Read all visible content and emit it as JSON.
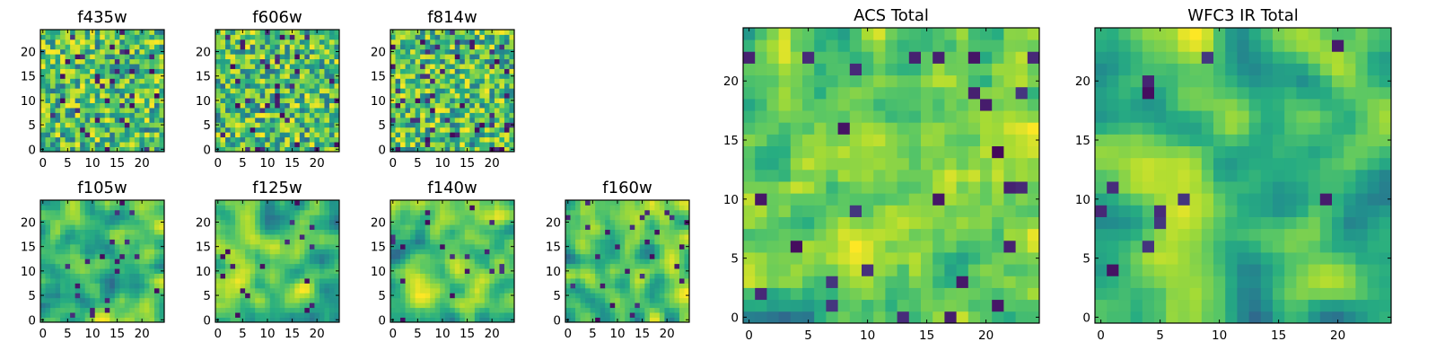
{
  "colormap": "viridis",
  "colors": {
    "frame": "#000000",
    "background": "#ffffff",
    "viridis_low": "#440154",
    "viridis_mid": "#21918c",
    "viridis_high": "#fde725"
  },
  "chart_data": [
    {
      "type": "heatmap",
      "title": "f435w",
      "grid_size": 25,
      "xticks": [
        0,
        5,
        10,
        15,
        20
      ],
      "yticks": [
        0,
        5,
        10,
        15,
        20
      ],
      "xlim": [
        -0.5,
        24.5
      ],
      "ylim": [
        -0.5,
        24.5
      ],
      "pattern": "noisy",
      "seed": 11,
      "smooth": 0,
      "dark_density": 0.05
    },
    {
      "type": "heatmap",
      "title": "f606w",
      "grid_size": 25,
      "xticks": [
        0,
        5,
        10,
        15,
        20
      ],
      "yticks": [
        0,
        5,
        10,
        15,
        20
      ],
      "xlim": [
        -0.5,
        24.5
      ],
      "ylim": [
        -0.5,
        24.5
      ],
      "pattern": "noisy",
      "seed": 23,
      "smooth": 0,
      "dark_density": 0.05
    },
    {
      "type": "heatmap",
      "title": "f814w",
      "grid_size": 25,
      "xticks": [
        0,
        5,
        10,
        15,
        20
      ],
      "yticks": [
        0,
        5,
        10,
        15,
        20
      ],
      "xlim": [
        -0.5,
        24.5
      ],
      "ylim": [
        -0.5,
        24.5
      ],
      "pattern": "noisy",
      "seed": 37,
      "smooth": 0,
      "dark_density": 0.06
    },
    {
      "type": "heatmap",
      "title": "f105w",
      "grid_size": 25,
      "xticks": [
        0,
        5,
        10,
        15,
        20
      ],
      "yticks": [
        0,
        5,
        10,
        15,
        20
      ],
      "xlim": [
        -0.5,
        24.5
      ],
      "ylim": [
        -0.5,
        24.5
      ],
      "pattern": "smooth",
      "seed": 41,
      "smooth": 2,
      "dark_density": 0.03
    },
    {
      "type": "heatmap",
      "title": "f125w",
      "grid_size": 25,
      "xticks": [
        0,
        5,
        10,
        15,
        20
      ],
      "yticks": [
        0,
        5,
        10,
        15,
        20
      ],
      "xlim": [
        -0.5,
        24.5
      ],
      "ylim": [
        -0.5,
        24.5
      ],
      "pattern": "smooth",
      "seed": 53,
      "smooth": 2,
      "dark_density": 0.03
    },
    {
      "type": "heatmap",
      "title": "f140w",
      "grid_size": 25,
      "xticks": [
        0,
        5,
        10,
        15,
        20
      ],
      "yticks": [
        0,
        5,
        10,
        15,
        20
      ],
      "xlim": [
        -0.5,
        24.5
      ],
      "ylim": [
        -0.5,
        24.5
      ],
      "pattern": "smooth",
      "seed": 67,
      "smooth": 2,
      "dark_density": 0.03
    },
    {
      "type": "heatmap",
      "title": "f160w",
      "grid_size": 25,
      "xticks": [
        0,
        5,
        10,
        15,
        20
      ],
      "yticks": [
        0,
        5,
        10,
        15,
        20
      ],
      "xlim": [
        -0.5,
        24.5
      ],
      "ylim": [
        -0.5,
        24.5
      ],
      "pattern": "smooth",
      "seed": 79,
      "smooth": 2,
      "dark_density": 0.03
    },
    {
      "type": "heatmap",
      "title": "ACS Total",
      "grid_size": 25,
      "xticks": [
        0,
        5,
        10,
        15,
        20
      ],
      "yticks": [
        0,
        5,
        10,
        15,
        20
      ],
      "xlim": [
        -0.5,
        24.5
      ],
      "ylim": [
        -0.5,
        24.5
      ],
      "pattern": "noisy",
      "seed": 97,
      "smooth": 1,
      "dark_density": 0.03
    },
    {
      "type": "heatmap",
      "title": "WFC3 IR Total",
      "grid_size": 25,
      "xticks": [
        0,
        5,
        10,
        15,
        20
      ],
      "yticks": [
        0,
        5,
        10,
        15,
        20
      ],
      "xlim": [
        -0.5,
        24.5
      ],
      "ylim": [
        -0.5,
        24.5
      ],
      "pattern": "smooth",
      "seed": 101,
      "smooth": 2,
      "dark_density": 0.02
    }
  ]
}
